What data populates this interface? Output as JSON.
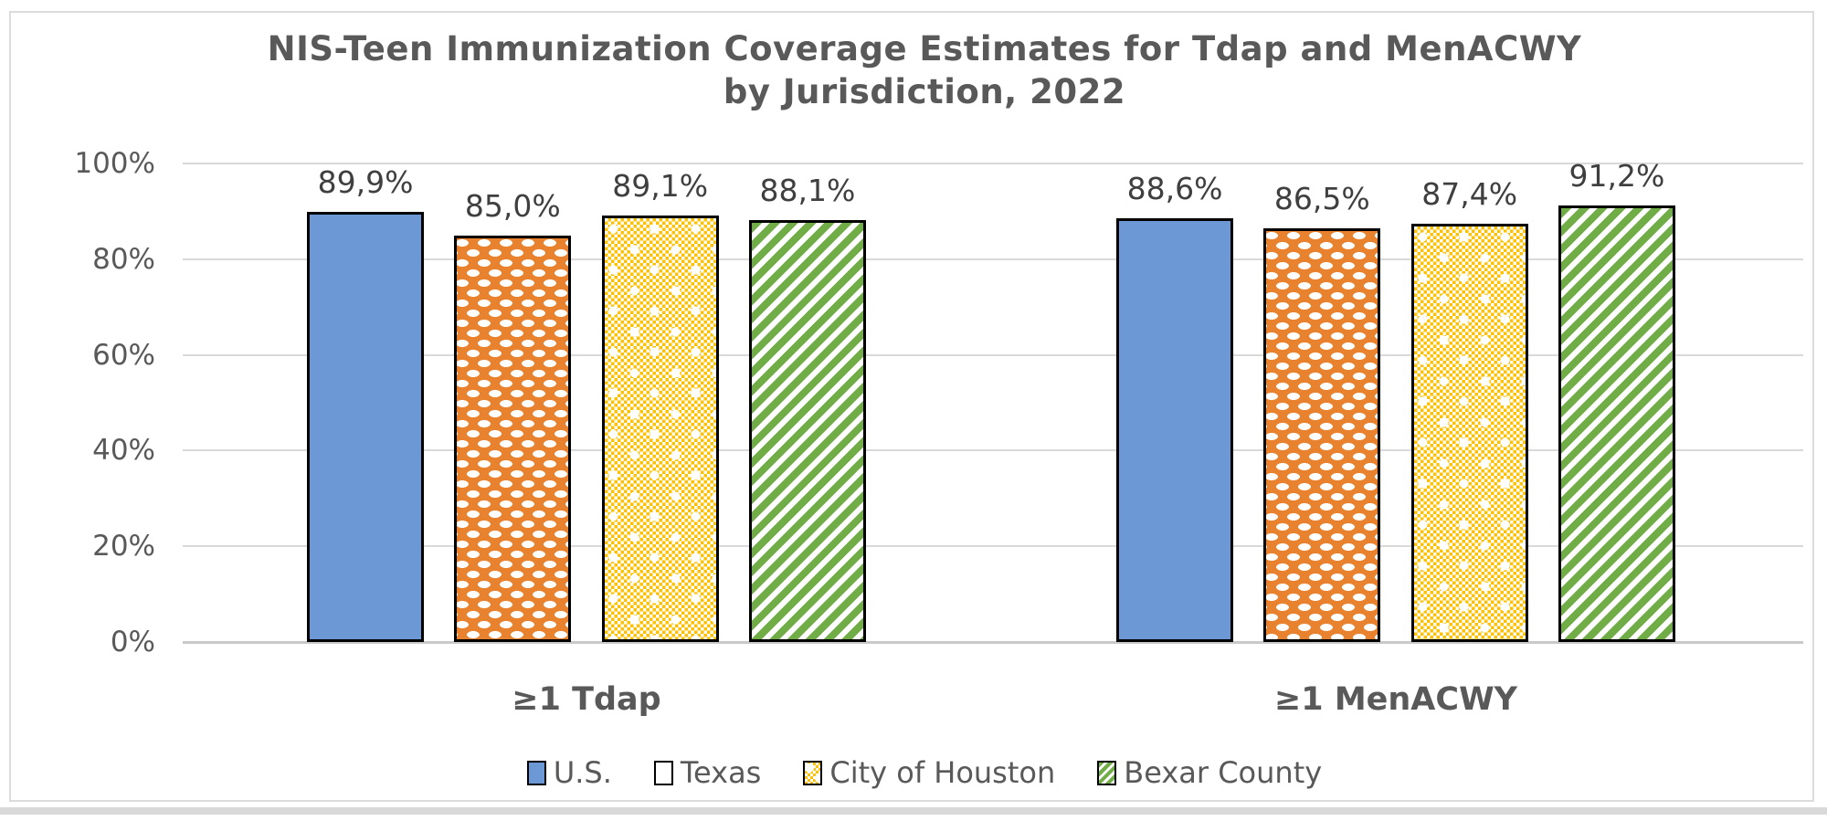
{
  "title": {
    "line1": "NIS-Teen Immunization Coverage Estimates for Tdap and MenACWY",
    "line2": "by Jurisdiction, 2022"
  },
  "chart_data": {
    "type": "bar",
    "title": "NIS-Teen Immunization Coverage Estimates for Tdap and MenACWY by Jurisdiction, 2022",
    "categories": [
      "≥1 Tdap",
      "≥1 MenACWY"
    ],
    "series": [
      {
        "name": "U.S.",
        "values": [
          89.9,
          88.6
        ],
        "labels": [
          "89,9%",
          "88,6%"
        ],
        "color": "#6D98D6",
        "pattern": "solid"
      },
      {
        "name": "Texas",
        "values": [
          85.0,
          86.5
        ],
        "labels": [
          "85,0%",
          "86,5%"
        ],
        "color": "#E8822F",
        "pattern": "white-dashes"
      },
      {
        "name": "City of Houston",
        "values": [
          89.1,
          87.4
        ],
        "labels": [
          "89,1%",
          "87,4%"
        ],
        "color": "#FFC000",
        "pattern": "checker"
      },
      {
        "name": "Bexar County",
        "values": [
          88.1,
          91.2
        ],
        "labels": [
          "88,1%",
          "91,2%"
        ],
        "color": "#70AD47",
        "pattern": "diagonal-stripes"
      }
    ],
    "y_ticks": [
      "100%",
      "80%",
      "60%",
      "40%",
      "20%",
      "0%"
    ],
    "y_tick_values": [
      100,
      80,
      60,
      40,
      20,
      0
    ],
    "ylim": [
      0,
      100
    ],
    "grid": true,
    "legend_position": "bottom"
  }
}
